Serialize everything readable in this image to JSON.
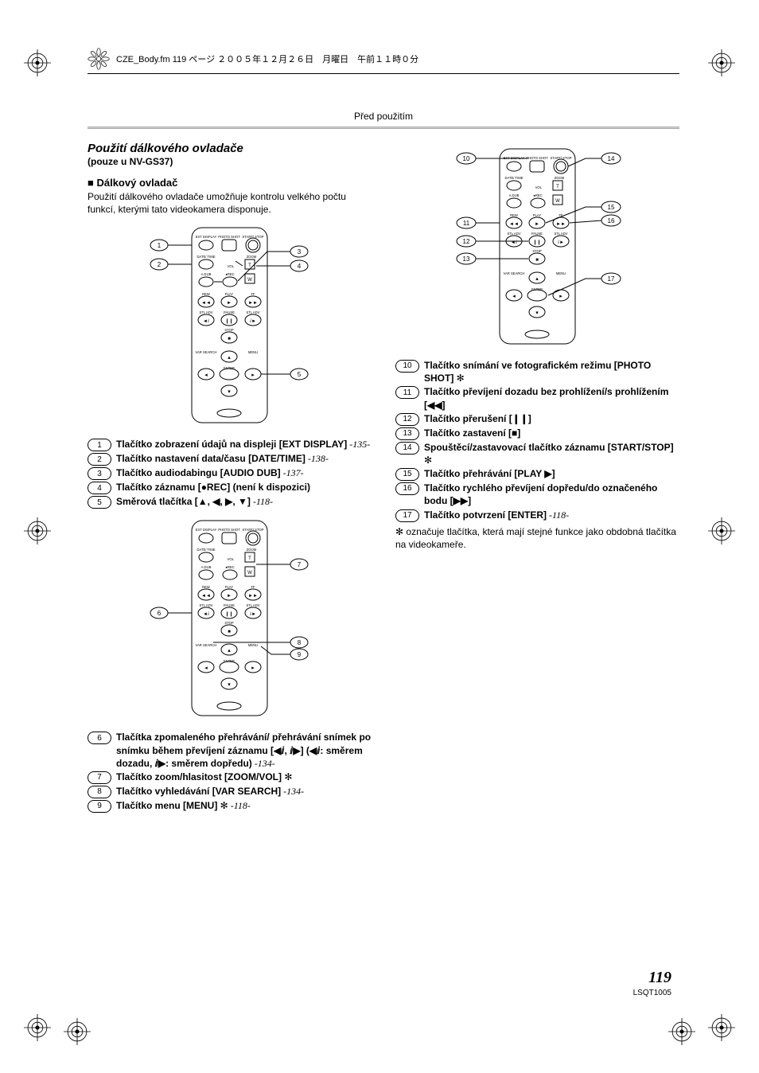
{
  "header": {
    "ornament": true,
    "text": "CZE_Body.fm   119 ページ   ２００５年１２月２６日　月曜日　午前１１時０分"
  },
  "section_label": "Před použitím",
  "title": "Použití dálkového ovladače",
  "subtitle": "(pouze u NV-GS37)",
  "heading": "Dálkový ovladač",
  "intro": "Použití dálkového ovladače umožňuje kontrolu velkého počtu funkcí, kterými tato videokamera disponuje.",
  "remote_labels": {
    "ext_display": "EXT DISPLAY",
    "photo_shot": "PHOTO SHOT",
    "start_stop": "START/ STOP",
    "date_time": "DATE/ TIME",
    "zoom": "ZOOM",
    "vol": "VOL",
    "audio_dub": "A.DUB",
    "rec": "●REC",
    "rew": "REW",
    "play": "PLAY",
    "ff": "FF",
    "stl_adv": "STL ADV",
    "pause": "PAUSE",
    "stop": "STOP",
    "var_search": "VAR SEARCH",
    "menu": "MENU",
    "enter": "ENTER",
    "t": "T",
    "w": "W"
  },
  "callouts_fig1": [
    "1",
    "2",
    "3",
    "4",
    "5"
  ],
  "callouts_fig2": [
    "6",
    "7",
    "8",
    "9"
  ],
  "callouts_fig3": [
    "10",
    "11",
    "12",
    "13",
    "14",
    "15",
    "16",
    "17"
  ],
  "list_left_1": [
    {
      "n": "1",
      "bold": "Tlačítko zobrazení údajů na displeji [EXT DISPLAY]",
      "ref": "-135-"
    },
    {
      "n": "2",
      "bold": "Tlačítko nastavení data/času [DATE/TIME]",
      "ref": "-138-"
    },
    {
      "n": "3",
      "bold": "Tlačítko audiodabingu [AUDIO DUB]",
      "ref": "-137-"
    },
    {
      "n": "4",
      "bold": "Tlačítko záznamu [●REC] (není k dispozici)",
      "ref": ""
    },
    {
      "n": "5",
      "bold": "Směrová tlačítka [▲, ◀, ▶, ▼]",
      "ref": "-118-"
    }
  ],
  "list_left_2": [
    {
      "n": "6",
      "bold": "Tlačítka zpomaleného přehrávání/ přehrávání snímek po snímku během převíjení záznamu [◀ⅈ, ⅈ▶] (◀ⅈ: směrem dozadu, ⅈ▶: směrem dopředu)",
      "ref": "-134-"
    },
    {
      "n": "7",
      "bold": "Tlačítko zoom/hlasitost [ZOOM/VOL]",
      "star": true,
      "ref": ""
    },
    {
      "n": "8",
      "bold": "Tlačítko vyhledávání [VAR SEARCH]",
      "ref": "-134-"
    },
    {
      "n": "9",
      "bold": "Tlačítko menu [MENU]",
      "star": true,
      "ref": "-118-"
    }
  ],
  "list_right": [
    {
      "n": "10",
      "bold": "Tlačítko snímání ve fotografickém režimu [PHOTO SHOT]",
      "star": true,
      "ref": ""
    },
    {
      "n": "11",
      "bold": "Tlačítko převíjení dozadu bez prohlížení/s prohlížením [◀◀]",
      "ref": ""
    },
    {
      "n": "12",
      "bold": "Tlačítko přerušení [❙❙]",
      "ref": ""
    },
    {
      "n": "13",
      "bold": "Tlačítko zastavení [■]",
      "ref": ""
    },
    {
      "n": "14",
      "bold": "Spouštěcí/zastavovací tlačítko záznamu [START/STOP]",
      "star": true,
      "ref": ""
    },
    {
      "n": "15",
      "bold": "Tlačítko přehrávání [PLAY ▶]",
      "ref": ""
    },
    {
      "n": "16",
      "bold": "Tlačítko rychlého převíjení dopředu/do označeného bodu [▶▶]",
      "ref": ""
    },
    {
      "n": "17",
      "bold": "Tlačítko potvrzení [ENTER]",
      "ref": "-118-"
    }
  ],
  "note": "✻ označuje tlačítka, která mají stejné funkce jako obdobná tlačítka na videokameře.",
  "star": "✻",
  "page_number": "119",
  "doc_id": "LSQT1005",
  "colors": {
    "text": "#000000",
    "divider": "#a9a9a9",
    "bg": "#ffffff"
  }
}
